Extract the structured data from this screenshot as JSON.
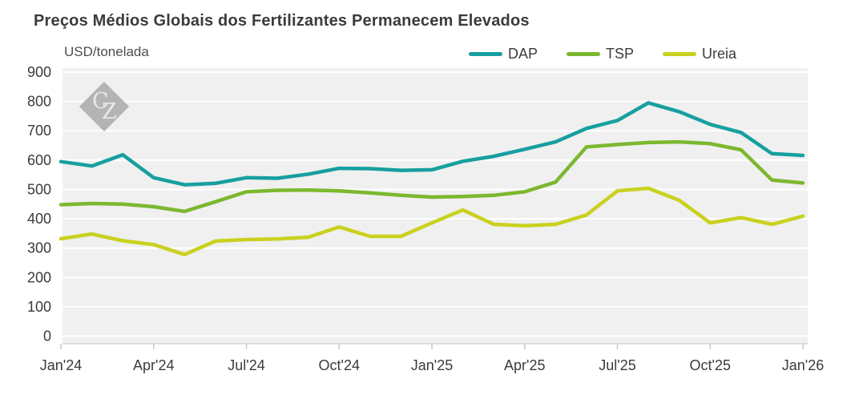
{
  "title": "Preços Médios Globais dos Fertilizantes Permanecem Elevados",
  "y_axis_unit_label": "USD/tonelada",
  "watermark": {
    "letter1": "C",
    "letter2": "Z"
  },
  "colors": {
    "plot_background": "#f0f0f0",
    "gridline": "#ffffff",
    "axis_line": "#d6d6d6",
    "tick_mark": "#c9c9c9",
    "text": "#3b3b3b"
  },
  "chart_data": {
    "type": "line",
    "title": "Preços Médios Globais dos Fertilizantes Permanecem Elevados",
    "ylabel": "USD/tonelada",
    "ylim": [
      0,
      900
    ],
    "y_ticks": [
      900,
      800,
      700,
      600,
      500,
      400,
      300,
      200,
      100,
      0
    ],
    "x_tick_labels": [
      "Jan'24",
      "Apr'24",
      "Jul'24",
      "Oct'24",
      "Jan'25",
      "Apr'25",
      "Jul'25",
      "Oct'25",
      "Jan'26"
    ],
    "grid": "horizontal-white-on-gray",
    "legend_position": "top-right",
    "categories": [
      "Jan'24",
      "Feb'24",
      "Mar'24",
      "Apr'24",
      "May'24",
      "Jun'24",
      "Jul'24",
      "Aug'24",
      "Sep'24",
      "Oct'24",
      "Nov'24",
      "Dec'24",
      "Jan'25",
      "Feb'25",
      "Mar'25",
      "Apr'25",
      "May'25",
      "Jun'25",
      "Jul'25",
      "Aug'25",
      "Sep'25",
      "Oct'25",
      "Nov'25",
      "Dec'25",
      "Jan'26"
    ],
    "series": [
      {
        "name": "DAP",
        "color": "#179fa0",
        "values": [
          595,
          580,
          618,
          540,
          516,
          521,
          540,
          538,
          552,
          572,
          571,
          565,
          567,
          596,
          613,
          637,
          662,
          708,
          735,
          795,
          765,
          722,
          694,
          622,
          616
        ]
      },
      {
        "name": "TSP",
        "color": "#7cb82f",
        "values": [
          448,
          452,
          450,
          441,
          425,
          458,
          492,
          497,
          498,
          495,
          488,
          480,
          474,
          476,
          480,
          492,
          525,
          645,
          653,
          660,
          662,
          656,
          635,
          532,
          522
        ]
      },
      {
        "name": "Ureia",
        "color": "#c9d11e",
        "values": [
          332,
          348,
          325,
          312,
          278,
          324,
          329,
          331,
          337,
          372,
          340,
          340,
          386,
          430,
          381,
          376,
          381,
          413,
          495,
          504,
          463,
          386,
          404,
          381,
          409
        ]
      }
    ]
  }
}
